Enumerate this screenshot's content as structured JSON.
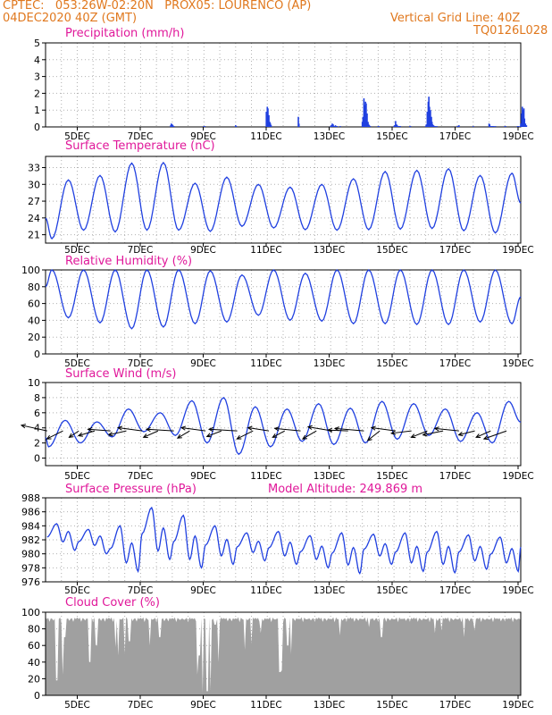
{
  "header": {
    "line1": "CPTEC:   053:26W-02:20N   PROX05: LOURENCO (AP)",
    "line2_left": "04DEC2020 40Z (GMT)",
    "line2_right": "Vertical Grid Line: 40Z",
    "line3_right": "TQ0126L028"
  },
  "colors": {
    "header": "#e0781e",
    "title": "#e0189a",
    "series": "#2040e0",
    "bars": "#2040e0",
    "cloud": "#a0a0a0",
    "wind": "#000000"
  },
  "x_ticks": [
    "5DEC",
    "7DEC",
    "9DEC",
    "11DEC",
    "13DEC",
    "15DEC",
    "17DEC",
    "19DEC"
  ],
  "chart_data": [
    {
      "id": "precip",
      "type": "bar",
      "title": "Precipitation (mm/h)",
      "ylim": [
        0,
        5
      ],
      "yticks": [
        0,
        1,
        2,
        3,
        4,
        5
      ],
      "x_days": [
        3.95,
        3.97,
        4.0,
        4.02,
        4.05,
        5.0,
        5.03,
        6.0,
        6.02,
        6.97,
        7.0,
        7.02,
        7.05,
        7.08,
        7.1,
        7.12,
        7.98,
        8.0,
        9.0,
        9.02,
        9.05,
        9.08,
        9.1,
        9.12,
        9.15,
        9.18,
        9.2,
        9.3,
        10.0,
        10.02,
        10.05,
        10.08,
        10.1,
        10.12,
        10.15,
        10.18,
        10.2,
        10.22,
        10.25,
        10.5,
        10.52,
        11.0,
        11.02,
        11.05,
        11.08,
        11.1,
        11.12,
        11.15,
        11.18,
        11.2,
        11.5,
        11.52,
        12.0,
        12.02,
        12.05,
        12.08,
        12.1,
        12.12,
        12.15,
        12.18,
        12.2,
        12.22,
        12.25,
        12.28,
        12.3,
        12.35,
        13.0,
        13.02,
        13.05,
        13.5,
        14.0,
        14.02,
        14.05,
        14.08,
        14.1,
        14.12,
        14.15,
        14.2,
        14.5,
        14.52,
        14.9,
        14.92,
        14.98,
        15.0,
        15.03,
        15.05,
        15.08,
        15.1,
        15.12,
        15.15,
        15.18
      ],
      "values": [
        0.1,
        0.2,
        0.15,
        0.1,
        0.05,
        0.05,
        0.05,
        0.1,
        0.05,
        0.9,
        1.2,
        1.1,
        0.7,
        0.3,
        0.2,
        0.1,
        0.6,
        0.2,
        0.05,
        0.1,
        0.2,
        0.15,
        0.05,
        0.05,
        0.1,
        0.05,
        0.05,
        0.05,
        0.3,
        0.6,
        1.7,
        1.3,
        1.5,
        1.4,
        0.8,
        0.3,
        0.15,
        0.1,
        0.05,
        0.05,
        0.05,
        0.05,
        0.1,
        0.35,
        0.15,
        0.1,
        0.05,
        0.05,
        0.05,
        0.05,
        0.05,
        0.05,
        0.05,
        0.15,
        0.9,
        1.5,
        1.8,
        1.2,
        1.0,
        0.6,
        0.3,
        0.15,
        0.1,
        0.05,
        0.05,
        0.05,
        0.05,
        0.05,
        0.1,
        0.05,
        0.2,
        0.15,
        0.05,
        0.05,
        0.05,
        0.05,
        0.05,
        0.05,
        0.05,
        0.05,
        0.05,
        0.05,
        0.05,
        0.2,
        0.8,
        1.2,
        1.0,
        1.1,
        0.5,
        0.2,
        0.1
      ]
    },
    {
      "id": "temp",
      "type": "line",
      "title": "Surface Temperature (nC)",
      "ylim": [
        19.5,
        35
      ],
      "yticks": [
        21,
        24,
        27,
        30,
        33
      ],
      "max": [
        30.8,
        31.6,
        33.8,
        33.9,
        30.2,
        31.3,
        30.0,
        29.5,
        30.0,
        31.0,
        32.3,
        32.5,
        32.8,
        31.6,
        32.0
      ],
      "min": [
        20.3,
        21.8,
        21.5,
        21.8,
        21.8,
        21.6,
        22.5,
        22.2,
        21.9,
        21.8,
        21.9,
        22.0,
        22.1,
        21.7,
        21.3
      ]
    },
    {
      "id": "rh",
      "type": "line",
      "title": "Relative Humidity (%)",
      "ylim": [
        0,
        100
      ],
      "yticks": [
        0,
        20,
        40,
        60,
        80,
        100
      ],
      "max": [
        100,
        100,
        100,
        100,
        100,
        99,
        94,
        100,
        96,
        100,
        100,
        100,
        100,
        100,
        100
      ],
      "min": [
        43,
        37,
        30,
        32,
        36,
        38,
        46,
        40,
        39,
        36,
        36,
        35,
        35,
        38,
        36
      ]
    },
    {
      "id": "wind",
      "type": "line",
      "title": "Surface Wind (m/s)",
      "ylim": [
        -1,
        10
      ],
      "yticks": [
        0,
        2,
        4,
        6,
        8,
        10
      ],
      "max": [
        5.0,
        4.8,
        6.5,
        6.0,
        7.6,
        8.0,
        6.8,
        6.5,
        7.2,
        6.6,
        7.5,
        7.2,
        6.5,
        6.0,
        7.5
      ],
      "min": [
        1.5,
        2.0,
        2.8,
        3.5,
        3.0,
        2.0,
        0.5,
        1.5,
        2.2,
        1.8,
        2.0,
        2.5,
        3.0,
        2.2,
        2.0
      ],
      "vectors_day_start": 0.05,
      "vectors_step_days": 0.5,
      "vector_y": 3.6,
      "vectors_u": [
        -3.2,
        -2.0,
        -1.2,
        -2.0,
        -2.8,
        -2.2,
        -3.0,
        -1.8,
        -3.4,
        -1.5,
        -3.0,
        -1.8,
        -3.5,
        -2.0,
        -2.6,
        -1.5,
        -3.2,
        -1.7,
        -3.0,
        -2.5,
        -3.6,
        -1.5,
        -3.0,
        -2.5,
        -2.0,
        -2.5,
        -3.0,
        -2.0,
        -1.8,
        -2.8
      ],
      "vectors_v": [
        0.7,
        -1.0,
        -0.8,
        -0.6,
        0.2,
        -0.5,
        0.4,
        -0.8,
        0.2,
        -0.9,
        0.4,
        -0.7,
        0.2,
        -1.0,
        0.4,
        -0.8,
        0.3,
        -1.0,
        0.5,
        0.1,
        0.3,
        -1.2,
        0.4,
        -0.3,
        -0.8,
        -0.5,
        0.3,
        -0.5,
        -0.8,
        -1.0
      ]
    },
    {
      "id": "pres",
      "type": "line",
      "title": "Surface Pressure (hPa)",
      "subtitle": "Model Altitude: 249.869 m",
      "ylim": [
        976,
        988
      ],
      "yticks": [
        976,
        978,
        980,
        982,
        984,
        986,
        988
      ],
      "max": [
        984.3,
        983.5,
        984.0,
        986.6,
        985.5,
        984.0,
        983.0,
        983.2,
        982.6,
        983.0,
        982.8,
        983.0,
        983.2,
        982.7,
        982.4
      ],
      "min": [
        980.5,
        980.0,
        977.5,
        979.2,
        978.0,
        978.5,
        979.0,
        978.5,
        978.0,
        977.2,
        978.5,
        977.5,
        977.3,
        977.8,
        977.5
      ]
    },
    {
      "id": "cloud",
      "type": "area",
      "title": "Cloud Cover (%)",
      "ylim": [
        0,
        100
      ],
      "yticks": [
        0,
        20,
        40,
        60,
        80,
        100
      ],
      "base": 94,
      "dips_day": [
        0.35,
        0.55,
        0.6,
        1.4,
        1.6,
        2.2,
        2.3,
        2.5,
        2.65,
        3.3,
        3.6,
        4.8,
        4.85,
        4.95,
        5.1,
        5.2,
        5.35,
        5.45,
        6.3,
        6.5,
        6.8,
        7.4,
        7.45,
        7.65,
        7.75,
        9.3,
        10.2,
        10.6,
        12.3,
        12.5,
        13.2,
        13.55
      ],
      "dips_value": [
        18,
        25,
        70,
        40,
        60,
        58,
        48,
        50,
        65,
        60,
        70,
        25,
        48,
        3,
        5,
        7,
        85,
        40,
        55,
        62,
        75,
        28,
        30,
        60,
        50,
        72,
        82,
        70,
        75,
        78,
        70,
        78
      ]
    }
  ]
}
